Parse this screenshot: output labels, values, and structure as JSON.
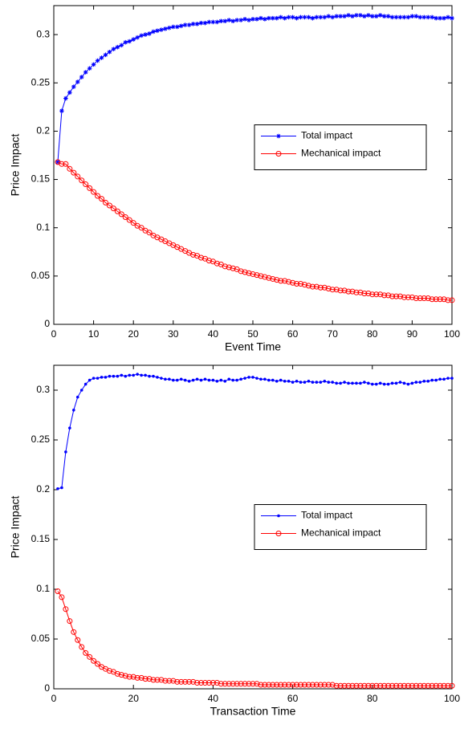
{
  "chart_data": [
    {
      "type": "line",
      "xlabel": "Event Time",
      "ylabel": "Price Impact",
      "x": [
        1,
        2,
        3,
        4,
        5,
        6,
        7,
        8,
        9,
        10,
        11,
        12,
        13,
        14,
        15,
        16,
        17,
        18,
        19,
        20,
        21,
        22,
        23,
        24,
        25,
        26,
        27,
        28,
        29,
        30,
        31,
        32,
        33,
        34,
        35,
        36,
        37,
        38,
        39,
        40,
        41,
        42,
        43,
        44,
        45,
        46,
        47,
        48,
        49,
        50,
        51,
        52,
        53,
        54,
        55,
        56,
        57,
        58,
        59,
        60,
        61,
        62,
        63,
        64,
        65,
        66,
        67,
        68,
        69,
        70,
        71,
        72,
        73,
        74,
        75,
        76,
        77,
        78,
        79,
        80,
        81,
        82,
        83,
        84,
        85,
        86,
        87,
        88,
        89,
        90,
        91,
        92,
        93,
        94,
        95,
        96,
        97,
        98,
        99,
        100
      ],
      "series": [
        {
          "name": "Total impact",
          "color": "#0000ff",
          "marker": "star",
          "values": [
            0.168,
            0.221,
            0.234,
            0.24,
            0.246,
            0.251,
            0.256,
            0.261,
            0.265,
            0.269,
            0.273,
            0.276,
            0.279,
            0.282,
            0.285,
            0.287,
            0.289,
            0.292,
            0.293,
            0.295,
            0.297,
            0.299,
            0.3,
            0.301,
            0.303,
            0.304,
            0.305,
            0.306,
            0.307,
            0.308,
            0.308,
            0.309,
            0.31,
            0.31,
            0.311,
            0.311,
            0.312,
            0.312,
            0.313,
            0.313,
            0.313,
            0.314,
            0.314,
            0.315,
            0.314,
            0.315,
            0.315,
            0.316,
            0.315,
            0.316,
            0.316,
            0.317,
            0.316,
            0.317,
            0.317,
            0.317,
            0.318,
            0.317,
            0.318,
            0.318,
            0.317,
            0.318,
            0.318,
            0.318,
            0.317,
            0.318,
            0.318,
            0.318,
            0.319,
            0.318,
            0.319,
            0.319,
            0.319,
            0.32,
            0.319,
            0.32,
            0.32,
            0.319,
            0.32,
            0.319,
            0.319,
            0.32,
            0.319,
            0.319,
            0.318,
            0.318,
            0.318,
            0.318,
            0.318,
            0.319,
            0.319,
            0.318,
            0.318,
            0.318,
            0.318,
            0.317,
            0.317,
            0.317,
            0.318,
            0.317
          ]
        },
        {
          "name": "Mechanical impact",
          "color": "#ff0000",
          "marker": "circle",
          "values": [
            0.168,
            0.166,
            0.166,
            0.161,
            0.157,
            0.153,
            0.149,
            0.145,
            0.141,
            0.137,
            0.133,
            0.13,
            0.126,
            0.123,
            0.12,
            0.117,
            0.114,
            0.111,
            0.108,
            0.105,
            0.102,
            0.1,
            0.097,
            0.095,
            0.092,
            0.09,
            0.088,
            0.086,
            0.084,
            0.082,
            0.08,
            0.078,
            0.076,
            0.074,
            0.072,
            0.071,
            0.069,
            0.068,
            0.066,
            0.065,
            0.063,
            0.062,
            0.06,
            0.059,
            0.058,
            0.057,
            0.055,
            0.054,
            0.053,
            0.052,
            0.051,
            0.05,
            0.049,
            0.048,
            0.047,
            0.046,
            0.045,
            0.045,
            0.044,
            0.043,
            0.042,
            0.042,
            0.041,
            0.04,
            0.039,
            0.039,
            0.038,
            0.038,
            0.037,
            0.036,
            0.036,
            0.035,
            0.035,
            0.034,
            0.034,
            0.033,
            0.033,
            0.032,
            0.032,
            0.031,
            0.031,
            0.031,
            0.03,
            0.03,
            0.029,
            0.029,
            0.029,
            0.028,
            0.028,
            0.028,
            0.027,
            0.027,
            0.027,
            0.027,
            0.026,
            0.026,
            0.026,
            0.026,
            0.025,
            0.025
          ]
        }
      ],
      "xlim": [
        0,
        100
      ],
      "xticks": [
        0,
        10,
        20,
        30,
        40,
        50,
        60,
        70,
        80,
        90,
        100
      ],
      "ylim": [
        0,
        0.33
      ],
      "yticks": [
        0,
        0.05,
        0.1,
        0.15,
        0.2,
        0.25,
        0.3
      ],
      "legend": "east"
    },
    {
      "type": "line",
      "xlabel": "Transaction Time",
      "ylabel": "Price Impact",
      "x": [
        1,
        2,
        3,
        4,
        5,
        6,
        7,
        8,
        9,
        10,
        11,
        12,
        13,
        14,
        15,
        16,
        17,
        18,
        19,
        20,
        21,
        22,
        23,
        24,
        25,
        26,
        27,
        28,
        29,
        30,
        31,
        32,
        33,
        34,
        35,
        36,
        37,
        38,
        39,
        40,
        41,
        42,
        43,
        44,
        45,
        46,
        47,
        48,
        49,
        50,
        51,
        52,
        53,
        54,
        55,
        56,
        57,
        58,
        59,
        60,
        61,
        62,
        63,
        64,
        65,
        66,
        67,
        68,
        69,
        70,
        71,
        72,
        73,
        74,
        75,
        76,
        77,
        78,
        79,
        80,
        81,
        82,
        83,
        84,
        85,
        86,
        87,
        88,
        89,
        90,
        91,
        92,
        93,
        94,
        95,
        96,
        97,
        98,
        99,
        100
      ],
      "series": [
        {
          "name": "Total impact",
          "color": "#0000ff",
          "marker": "dot",
          "values": [
            0.201,
            0.202,
            0.238,
            0.262,
            0.28,
            0.293,
            0.3,
            0.306,
            0.31,
            0.312,
            0.312,
            0.313,
            0.313,
            0.314,
            0.314,
            0.314,
            0.315,
            0.314,
            0.315,
            0.315,
            0.316,
            0.315,
            0.315,
            0.314,
            0.314,
            0.313,
            0.312,
            0.311,
            0.311,
            0.31,
            0.31,
            0.311,
            0.31,
            0.309,
            0.31,
            0.311,
            0.31,
            0.311,
            0.31,
            0.31,
            0.309,
            0.31,
            0.309,
            0.311,
            0.31,
            0.31,
            0.311,
            0.312,
            0.313,
            0.313,
            0.312,
            0.311,
            0.311,
            0.31,
            0.31,
            0.309,
            0.31,
            0.309,
            0.309,
            0.308,
            0.309,
            0.308,
            0.308,
            0.309,
            0.308,
            0.308,
            0.308,
            0.309,
            0.308,
            0.308,
            0.307,
            0.307,
            0.308,
            0.307,
            0.307,
            0.307,
            0.307,
            0.308,
            0.307,
            0.306,
            0.306,
            0.307,
            0.306,
            0.306,
            0.307,
            0.307,
            0.308,
            0.307,
            0.306,
            0.307,
            0.308,
            0.308,
            0.309,
            0.309,
            0.31,
            0.31,
            0.311,
            0.311,
            0.312,
            0.312
          ]
        },
        {
          "name": "Mechanical impact",
          "color": "#ff0000",
          "marker": "circle",
          "values": [
            0.098,
            0.092,
            0.08,
            0.068,
            0.057,
            0.049,
            0.042,
            0.036,
            0.032,
            0.028,
            0.025,
            0.022,
            0.02,
            0.018,
            0.017,
            0.015,
            0.014,
            0.013,
            0.012,
            0.012,
            0.011,
            0.011,
            0.01,
            0.01,
            0.009,
            0.009,
            0.009,
            0.008,
            0.008,
            0.008,
            0.007,
            0.007,
            0.007,
            0.007,
            0.007,
            0.006,
            0.006,
            0.006,
            0.006,
            0.006,
            0.006,
            0.005,
            0.005,
            0.005,
            0.005,
            0.005,
            0.005,
            0.005,
            0.005,
            0.005,
            0.005,
            0.004,
            0.004,
            0.004,
            0.004,
            0.004,
            0.004,
            0.004,
            0.004,
            0.004,
            0.004,
            0.004,
            0.004,
            0.004,
            0.004,
            0.004,
            0.004,
            0.004,
            0.004,
            0.004,
            0.003,
            0.003,
            0.003,
            0.003,
            0.003,
            0.003,
            0.003,
            0.003,
            0.003,
            0.003,
            0.003,
            0.003,
            0.003,
            0.003,
            0.003,
            0.003,
            0.003,
            0.003,
            0.003,
            0.003,
            0.003,
            0.003,
            0.003,
            0.003,
            0.003,
            0.003,
            0.003,
            0.003,
            0.003,
            0.003
          ]
        }
      ],
      "xlim": [
        0,
        100
      ],
      "xticks": [
        0,
        20,
        40,
        60,
        80,
        100
      ],
      "ylim": [
        0,
        0.325
      ],
      "yticks": [
        0,
        0.05,
        0.1,
        0.15,
        0.2,
        0.25,
        0.3
      ],
      "legend": "east"
    }
  ]
}
